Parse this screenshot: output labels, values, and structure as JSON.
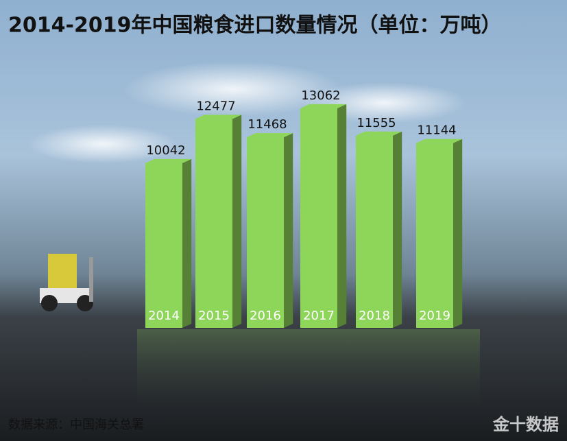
{
  "chart_data": {
    "type": "bar3d",
    "title": "2014-2019年中国粮食进口数量情况（单位：万吨）",
    "categories": [
      "2014",
      "2015",
      "2016",
      "2017",
      "2018",
      "2019"
    ],
    "values": [
      10042,
      12477,
      11468,
      13062,
      11555,
      11144
    ],
    "color": "#8ed65a",
    "source": "数据来源：中国海关总署",
    "watermark": "金十数据"
  }
}
